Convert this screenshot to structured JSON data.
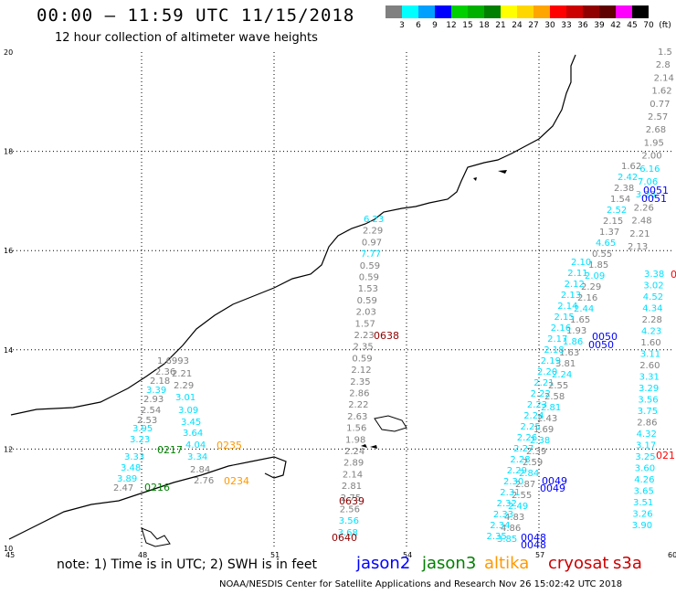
{
  "header": {
    "title": "00:00 – 11:59 UTC 11/15/2018",
    "subtitle": "12 hour collection of altimeter wave heights"
  },
  "legend": {
    "colors": [
      "#808080",
      "#00ffff",
      "#00a0ff",
      "#0000ff",
      "#00d000",
      "#00b000",
      "#008000",
      "#ffff00",
      "#ffd700",
      "#ffa500",
      "#ff0000",
      "#cc0000",
      "#900000",
      "#600000",
      "#ff00ff",
      "#000000"
    ],
    "labels": [
      "3",
      "6",
      "9",
      "12",
      "15",
      "18",
      "21",
      "24",
      "27",
      "30",
      "33",
      "36",
      "39",
      "42",
      "45",
      "70",
      "(ft)"
    ]
  },
  "axes": {
    "x_ticks": [
      "45",
      "48",
      "51",
      "54",
      "57",
      "60"
    ],
    "y_ticks": [
      "20",
      "18",
      "16",
      "14",
      "12",
      "10"
    ]
  },
  "colors": {
    "gray": "#808080",
    "cyan": "#00e0ff",
    "blue": "#0000ff",
    "green": "#008000",
    "orange": "#ff9900",
    "darkred": "#900000",
    "red": "#ff0000"
  },
  "track_a": {
    "color": "gray",
    "values": [
      "1.6993",
      "2.36",
      "2.21",
      "2.18",
      "2.29",
      "2.93",
      "2.54",
      "2.53",
      "2.47",
      "2.76",
      "2.84"
    ],
    "cyan_values": [
      "3.39",
      "3.01",
      "3.09",
      "3.45",
      "3.95",
      "3.64",
      "3.23",
      "4.04",
      "3.33",
      "3.34",
      "3.48",
      "3.89"
    ],
    "times": [
      {
        "text": "0217",
        "color": "green"
      },
      {
        "text": "0235",
        "color": "orange"
      },
      {
        "text": "0216",
        "color": "green"
      },
      {
        "text": "0234",
        "color": "orange"
      }
    ]
  },
  "track_b": {
    "values": [
      "6.23",
      "2.29",
      "0.97",
      "7.77",
      "0.59",
      "0.59",
      "1.53",
      "0.59",
      "2.03",
      "1.57",
      "2.23",
      "2.35",
      "0.59",
      "2.12",
      "2.35",
      "2.86",
      "2.22",
      "2.63",
      "1.56",
      "1.98",
      "2.24",
      "2.89",
      "2.14",
      "2.81",
      "2.75",
      "2.56",
      "3.56",
      "3.68"
    ],
    "times": [
      {
        "text": "0638",
        "color": "darkred"
      },
      {
        "text": "0639",
        "color": "darkred"
      },
      {
        "text": "0640",
        "color": "darkred"
      }
    ]
  },
  "track_c": {
    "values": [
      "1.62",
      "2.42",
      "2.38",
      "1.54",
      "2.52",
      "2.15",
      "1.37",
      "4.65",
      "0.55",
      "1.85",
      "2.09",
      "2.29",
      "2.16",
      "2.44",
      "1.65",
      "1.93",
      "1.86",
      "1.63",
      "3.81",
      "2.24",
      "2.55",
      "2.58",
      "2.81",
      "2.43",
      "1.69",
      "2.38",
      "2.39",
      "2.59",
      "2.84",
      "2.87",
      "2.55",
      "2.49",
      "4.83",
      "4.86",
      "3.85"
    ],
    "times": [
      {
        "text": "0050",
        "color": "blue"
      },
      {
        "text": "0049",
        "color": "blue"
      },
      {
        "text": "0048",
        "color": "blue"
      }
    ]
  },
  "track_d": {
    "values": [
      "1.5",
      "2.8",
      "2.14",
      "1.62",
      "0.77",
      "2.57",
      "2.68",
      "1.95",
      "2.00",
      "6.16",
      "7.06",
      "3.23",
      "2.26",
      "2.48",
      "2.21",
      "2.13",
      "3.38",
      "3.02",
      "4.52",
      "4.34",
      "2.28",
      "4.23",
      "1.60",
      "3.11",
      "2.60",
      "3.31",
      "3.29",
      "3.56",
      "3.75",
      "2.86",
      "4.32",
      "3.17",
      "3.25",
      "3.60",
      "4.26",
      "3.65",
      "3.51",
      "3.26",
      "3.90"
    ],
    "times": [
      {
        "text": "0051",
        "color": "blue"
      },
      {
        "text": "0051",
        "color": "blue"
      },
      {
        "text": "0050",
        "color": "blue"
      },
      {
        "text": "0049",
        "color": "blue"
      },
      {
        "text": "0048",
        "color": "blue"
      }
    ],
    "edge_times": [
      {
        "text": "0",
        "color": "red"
      },
      {
        "text": "021",
        "color": "red"
      }
    ]
  },
  "footer": {
    "note": "note: 1) Time is in UTC; 2) SWH is in feet",
    "satellites": [
      {
        "name": "jason2",
        "color": "#0000ff"
      },
      {
        "name": "jason3",
        "color": "#008000"
      },
      {
        "name": "altika",
        "color": "#ff9900"
      },
      {
        "name": "cryosat",
        "color": "#cc0000"
      },
      {
        "name": "s3a",
        "color": "#cc0000"
      }
    ],
    "credit": "NOAA/NESDIS Center for Satellite Applications and Research    Nov 26 15:02:42 UTC 2018"
  }
}
